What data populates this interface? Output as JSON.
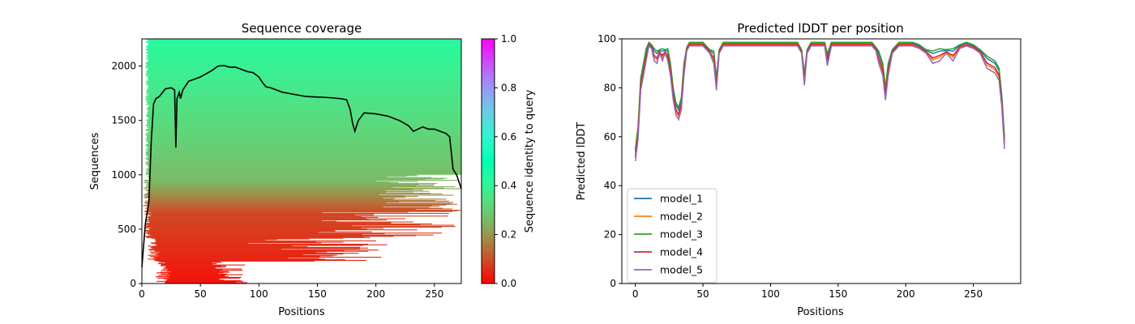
{
  "chart_data": [
    {
      "type": "heatmap",
      "title": "Sequence coverage",
      "xlabel": "Positions",
      "ylabel": "Sequences",
      "xlim": [
        0,
        273
      ],
      "ylim": [
        0,
        2250
      ],
      "xticks": [
        "0",
        "50",
        "100",
        "150",
        "200",
        "250"
      ],
      "yticks": [
        "0",
        "500",
        "1000",
        "1500",
        "2000"
      ],
      "colorbar": {
        "label": "Sequence identity to query",
        "range": [
          0.0,
          1.0
        ],
        "ticks": [
          "0.0",
          "0.2",
          "0.4",
          "0.6",
          "0.8",
          "1.0"
        ],
        "colormap": "rainbow_r"
      },
      "coverage_line": {
        "color": "#000000",
        "x": [
          0,
          3,
          6,
          8,
          10,
          12,
          15,
          20,
          25,
          28,
          29,
          30,
          32,
          33,
          35,
          40,
          45,
          50,
          55,
          60,
          65,
          70,
          75,
          80,
          85,
          90,
          95,
          100,
          103,
          106,
          110,
          115,
          120,
          125,
          130,
          140,
          150,
          160,
          170,
          175,
          178,
          180,
          182,
          185,
          190,
          200,
          210,
          220,
          225,
          228,
          232,
          240,
          245,
          250,
          255,
          260,
          263,
          266,
          269,
          273
        ],
        "y": [
          150,
          550,
          750,
          1300,
          1650,
          1700,
          1720,
          1790,
          1800,
          1780,
          1250,
          1700,
          1760,
          1700,
          1780,
          1860,
          1880,
          1900,
          1930,
          1960,
          2000,
          2005,
          1990,
          1990,
          1970,
          1950,
          1940,
          1900,
          1850,
          1810,
          1800,
          1780,
          1760,
          1750,
          1740,
          1720,
          1715,
          1710,
          1700,
          1690,
          1600,
          1480,
          1400,
          1500,
          1570,
          1560,
          1540,
          1500,
          1470,
          1450,
          1400,
          1440,
          1420,
          1420,
          1400,
          1380,
          1350,
          1050,
          1000,
          870
        ]
      }
    },
    {
      "type": "line",
      "title": "Predicted lDDT per position",
      "xlabel": "Positions",
      "ylabel": "Predicted lDDT",
      "xlim": [
        -10,
        285
      ],
      "ylim": [
        0,
        100
      ],
      "xticks": [
        "0",
        "50",
        "100",
        "150",
        "200",
        "250"
      ],
      "yticks": [
        "0",
        "20",
        "40",
        "60",
        "80",
        "100"
      ],
      "legend_position": "lower-left",
      "base_profile": {
        "x": [
          0,
          2,
          4,
          6,
          8,
          10,
          12,
          14,
          16,
          18,
          20,
          22,
          24,
          26,
          28,
          30,
          32,
          34,
          36,
          38,
          40,
          45,
          50,
          55,
          58,
          60,
          62,
          65,
          70,
          80,
          90,
          100,
          110,
          120,
          123,
          125,
          127,
          130,
          140,
          142,
          145,
          150,
          160,
          170,
          175,
          178,
          180,
          183,
          185,
          187,
          190,
          195,
          200,
          205,
          210,
          215,
          220,
          225,
          230,
          235,
          240,
          245,
          250,
          255,
          260,
          263,
          266,
          269,
          271,
          273
        ],
        "y": [
          53,
          62,
          82,
          88,
          94,
          98,
          97,
          94,
          93,
          95,
          94,
          95,
          94,
          88,
          78,
          72,
          70,
          74,
          88,
          96,
          98,
          98,
          98,
          95,
          93,
          82,
          95,
          98,
          98,
          98,
          98,
          98,
          98,
          98,
          95,
          84,
          95,
          98,
          98,
          92,
          98,
          98,
          98,
          98,
          98,
          96,
          93,
          88,
          78,
          88,
          95,
          98,
          98,
          98,
          97,
          95,
          93,
          94,
          95,
          94,
          97,
          98,
          97,
          95,
          91,
          90,
          89,
          86,
          75,
          58
        ]
      },
      "series": [
        {
          "name": "model_1",
          "color": "#1f77b4",
          "offset": 0.5
        },
        {
          "name": "model_2",
          "color": "#ff7f0e",
          "offset": -0.8
        },
        {
          "name": "model_3",
          "color": "#2ca02c",
          "offset": 1.0
        },
        {
          "name": "model_4",
          "color": "#d62728",
          "offset": -0.4
        },
        {
          "name": "model_5",
          "color": "#9467bd",
          "offset": -1.5
        }
      ]
    }
  ]
}
